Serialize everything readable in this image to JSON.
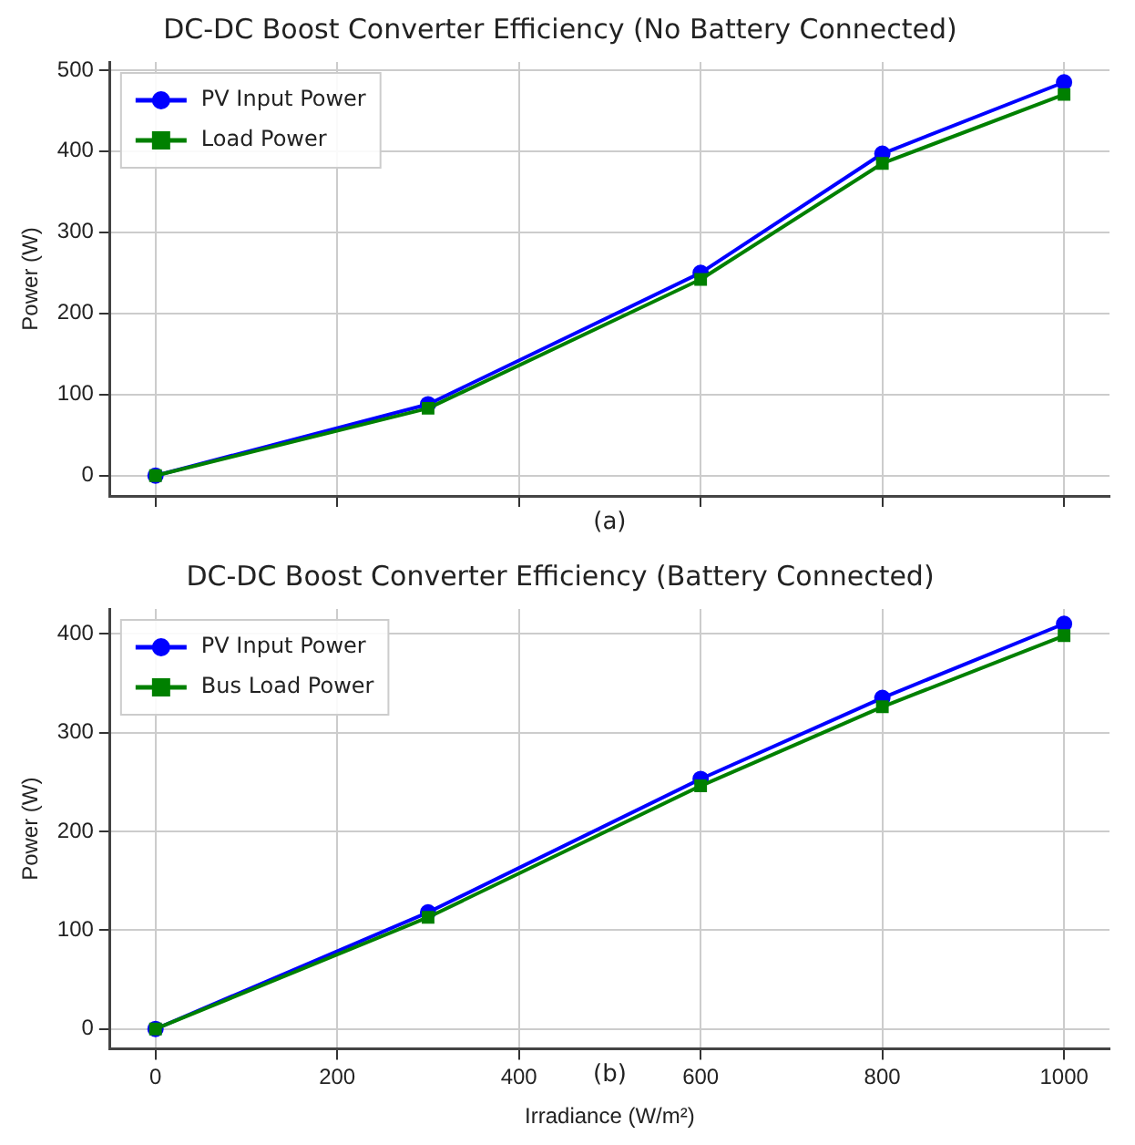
{
  "chart_data": [
    {
      "type": "line",
      "title": "DC-DC Boost Converter Efficiency (No Battery Connected)",
      "ylabel": "Power (W)",
      "annotations": [
        "(a)"
      ],
      "x": [
        0,
        300,
        600,
        800,
        1000
      ],
      "xlim": [
        -50,
        1050
      ],
      "xticks": [
        0,
        200,
        400,
        600,
        800,
        1000
      ],
      "ylim": [
        -25,
        510
      ],
      "yticks": [
        0,
        100,
        200,
        300,
        400,
        500
      ],
      "tick_labels": "y",
      "grid": true,
      "legend": "top left",
      "line_style": "solid",
      "series": [
        {
          "name": "PV Input Power",
          "color": "#0000ff",
          "marker": "circle",
          "values": [
            0,
            88,
            250,
            397,
            485
          ]
        },
        {
          "name": "Load Power",
          "color": "#008000",
          "marker": "square",
          "values": [
            0,
            83,
            242,
            385,
            470
          ]
        }
      ]
    },
    {
      "type": "line",
      "title": "DC-DC Boost Converter Efficiency (Battery Connected)",
      "xlabel": "Irradiance (W/m²)",
      "ylabel": "Power (W)",
      "annotations": [
        "(b)"
      ],
      "x": [
        0,
        300,
        600,
        800,
        1000
      ],
      "xlim": [
        -50,
        1050
      ],
      "xticks": [
        0,
        200,
        400,
        600,
        800,
        1000
      ],
      "ylim": [
        -20,
        425
      ],
      "yticks": [
        0,
        100,
        200,
        300,
        400
      ],
      "grid": true,
      "legend": "top left",
      "line_style": "solid",
      "series": [
        {
          "name": "PV Input Power",
          "color": "#0000ff",
          "marker": "circle",
          "values": [
            0,
            118,
            253,
            335,
            410
          ]
        },
        {
          "name": "Bus Load Power",
          "color": "#008000",
          "marker": "square",
          "values": [
            0,
            113,
            246,
            326,
            398
          ]
        }
      ]
    }
  ]
}
